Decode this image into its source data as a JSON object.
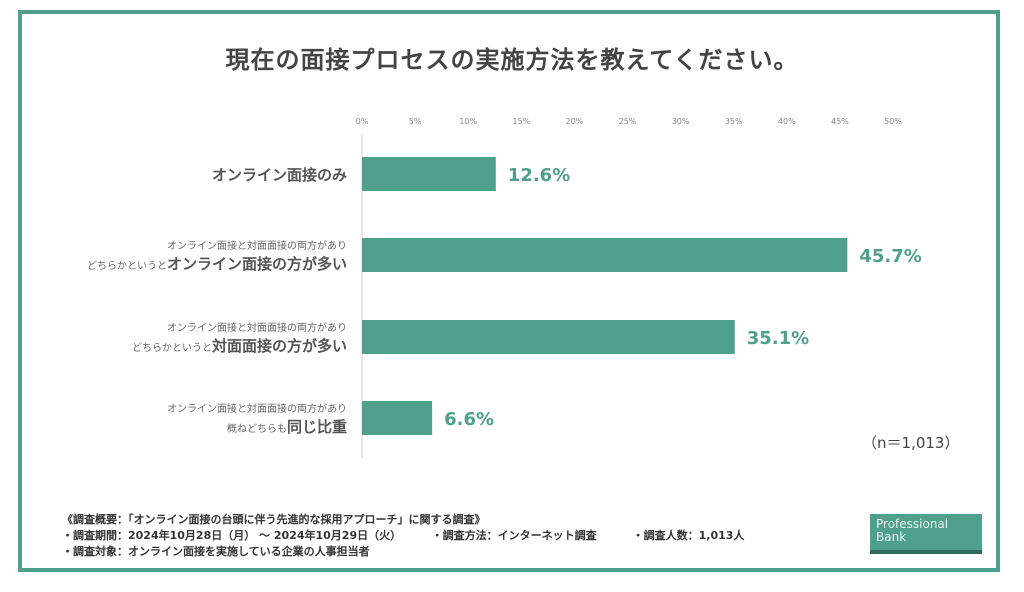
{
  "title": "現在の面接プロセスの実施方法を教えてください。",
  "chart_data": {
    "type": "bar",
    "orientation": "horizontal",
    "title": "現在の面接プロセスの実施方法を教えてください。",
    "xlim": [
      0,
      50
    ],
    "xticks": [
      "0%",
      "5%",
      "10%",
      "15%",
      "20%",
      "25%",
      "30%",
      "35%",
      "40%",
      "45%",
      "50%"
    ],
    "categories": [
      {
        "small": "",
        "prefix": "",
        "big": "オンライン面接のみ"
      },
      {
        "small": "オンライン面接と対面面接の両方があり",
        "prefix": "どちらかというと",
        "big": "オンライン面接の方が多い"
      },
      {
        "small": "オンライン面接と対面面接の両方があり",
        "prefix": "どちらかというと",
        "big": "対面面接の方が多い"
      },
      {
        "small": "オンライン面接と対面面接の両方があり",
        "prefix": "概ねどちらも",
        "big": "同じ比重"
      }
    ],
    "values": [
      12.6,
      45.7,
      35.1,
      6.6
    ],
    "value_labels": [
      "12.6%",
      "45.7%",
      "35.1%",
      "6.6%"
    ],
    "bar_color": "#4f9f8d"
  },
  "sample": "（n＝1,013）",
  "notes": {
    "overview": "《調査概要：「オンライン面接の台頭に伴う先進的な採用アプローチ」に関する調査》",
    "period": "・調査期間：2024年10月28日（月） ～ 2024年10月29日（火）",
    "method": "・調査方法：インターネット調査",
    "count": "・調査人数：1,013人",
    "target": "・調査対象：オンライン面接を実施している企業の人事担当者"
  },
  "logo": {
    "line1": "Professional",
    "line2": "Bank"
  }
}
